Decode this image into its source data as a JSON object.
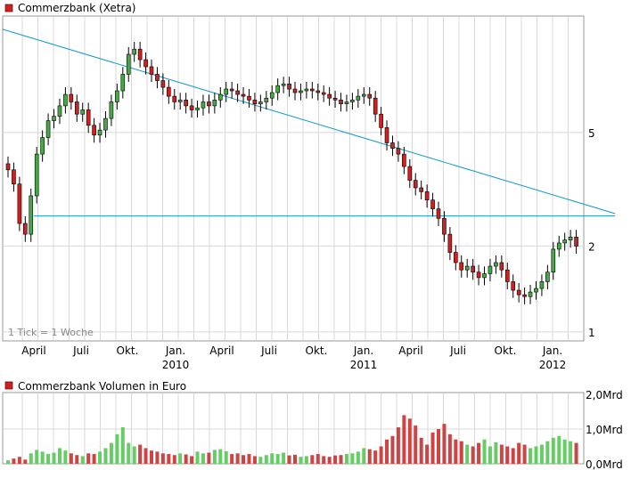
{
  "chart_data": [
    {
      "type": "candlestick",
      "title": "Commerzbank (Xetra)",
      "footnote": "1 Tick = 1 Woche",
      "y_scale": "log",
      "ylim": [
        0.93,
        12.8
      ],
      "yticks": [
        1,
        2,
        5
      ],
      "x_tick_labels": [
        "April",
        "Juli",
        "Okt.",
        "Jan.",
        "April",
        "Juli",
        "Okt.",
        "Jan.",
        "April",
        "Juli",
        "Okt.",
        "Jan."
      ],
      "x_year_labels": [
        "2010",
        "2011",
        "2012"
      ],
      "grid": true,
      "series_closes": [
        3.7,
        3.3,
        2.4,
        2.2,
        3.0,
        4.2,
        4.8,
        5.5,
        5.7,
        6.2,
        6.8,
        6.4,
        5.8,
        6.0,
        5.3,
        4.9,
        5.1,
        5.6,
        6.4,
        7.0,
        8.0,
        9.4,
        9.8,
        9.0,
        8.5,
        8.0,
        7.6,
        7.2,
        6.7,
        6.4,
        6.5,
        6.2,
        6.0,
        6.1,
        6.4,
        6.2,
        6.5,
        6.8,
        7.1,
        7.0,
        6.8,
        6.7,
        6.5,
        6.3,
        6.4,
        6.6,
        6.9,
        7.3,
        7.4,
        7.1,
        6.9,
        7.0,
        7.1,
        7.0,
        6.9,
        6.8,
        6.6,
        6.5,
        6.3,
        6.4,
        6.5,
        6.7,
        6.8,
        6.6,
        5.8,
        5.2,
        4.6,
        4.4,
        4.2,
        3.8,
        3.4,
        3.2,
        3.1,
        2.9,
        2.7,
        2.5,
        2.2,
        1.9,
        1.75,
        1.65,
        1.7,
        1.62,
        1.55,
        1.6,
        1.7,
        1.75,
        1.65,
        1.5,
        1.4,
        1.35,
        1.33,
        1.38,
        1.42,
        1.5,
        1.62,
        1.95,
        2.05,
        2.1,
        2.15,
        2.0
      ],
      "trendlines": [
        {
          "from": {
            "week": 0,
            "value": 11.5
          },
          "to": {
            "week": 99,
            "value": 2.6
          }
        },
        {
          "horizontal_value": 2.55
        }
      ]
    },
    {
      "type": "bar",
      "title": "Commerzbank Volumen in Euro",
      "ylim": [
        0,
        2.0
      ],
      "ytick_labels": [
        "0,0Mrd",
        "1,0Mrd",
        "2,0Mrd"
      ],
      "yticks": [
        0,
        1.0,
        2.0
      ],
      "unit": "Mrd",
      "bar_values_approx": [
        0.1,
        0.15,
        0.2,
        0.12,
        0.3,
        0.4,
        0.35,
        0.28,
        0.32,
        0.45,
        0.38,
        0.3,
        0.25,
        0.22,
        0.3,
        0.28,
        0.35,
        0.45,
        0.6,
        0.85,
        1.05,
        0.6,
        0.5,
        0.55,
        0.45,
        0.38,
        0.35,
        0.3,
        0.28,
        0.25,
        0.3,
        0.27,
        0.22,
        0.35,
        0.3,
        0.32,
        0.4,
        0.42,
        0.36,
        0.28,
        0.3,
        0.25,
        0.28,
        0.22,
        0.2,
        0.25,
        0.3,
        0.28,
        0.32,
        0.24,
        0.26,
        0.2,
        0.22,
        0.25,
        0.28,
        0.22,
        0.2,
        0.24,
        0.25,
        0.28,
        0.3,
        0.35,
        0.45,
        0.42,
        0.38,
        0.5,
        0.7,
        0.8,
        1.05,
        1.4,
        1.3,
        1.1,
        0.75,
        0.55,
        0.9,
        1.0,
        1.15,
        0.85,
        0.7,
        0.65,
        0.55,
        0.5,
        0.6,
        0.7,
        0.5,
        0.62,
        0.55,
        0.5,
        0.45,
        0.6,
        0.55,
        0.45,
        0.5,
        0.55,
        0.65,
        0.75,
        0.8,
        0.7,
        0.65,
        0.6
      ],
      "bar_colors": {
        "up": "#66cc66",
        "down": "#cc4444"
      }
    }
  ],
  "colors": {
    "candle_up": "#44aa44",
    "candle_down": "#cc2222",
    "wick": "#000000",
    "trendline": "#1199cc",
    "grid": "#d8d8d8",
    "frame": "#999999",
    "legend_marker": "#cc2222"
  }
}
